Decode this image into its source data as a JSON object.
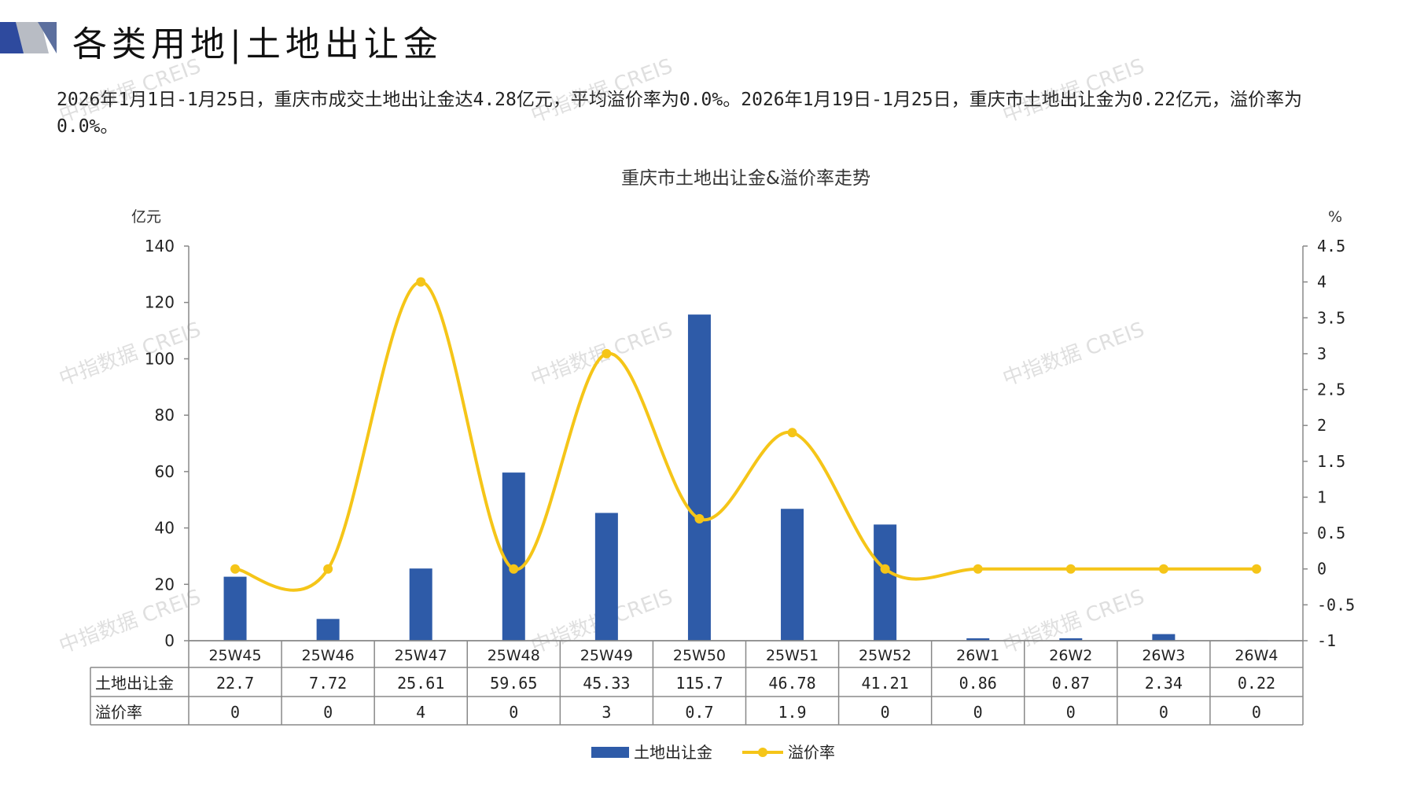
{
  "header": {
    "title": "各类用地|土地出让金",
    "summary": "2026年1月1日-1月25日，重庆市成交土地出让金达4.28亿元，平均溢价率为0.0%。2026年1月19日-1月25日，重庆市土地出让金为0.22亿元，溢价率为0.0%。"
  },
  "watermark": {
    "text": "中指数据 CREIS"
  },
  "colors": {
    "bar": "#2E5BA8",
    "line": "#F5C518",
    "axis": "#888888",
    "logo_dark": "#2E4A9E",
    "logo_light": "#B8BCC4"
  },
  "chart_data": {
    "type": "bar+line",
    "title": "重庆市土地出让金&溢价率走势",
    "ylabel_left": "亿元",
    "ylabel_right": "%",
    "ylim_left": [
      0,
      140
    ],
    "yticks_left": [
      0,
      20,
      40,
      60,
      80,
      100,
      120,
      140
    ],
    "ylim_right": [
      -1,
      4.5
    ],
    "yticks_right": [
      -1,
      -0.5,
      0,
      0.5,
      1,
      1.5,
      2,
      2.5,
      3,
      3.5,
      4,
      4.5
    ],
    "categories": [
      "25W45",
      "25W46",
      "25W47",
      "25W48",
      "25W49",
      "25W50",
      "25W51",
      "25W52",
      "26W1",
      "26W2",
      "26W3",
      "26W4"
    ],
    "series": [
      {
        "name": "土地出让金",
        "type": "bar",
        "axis": "left",
        "values": [
          22.7,
          7.72,
          25.61,
          59.65,
          45.33,
          115.7,
          46.78,
          41.21,
          0.86,
          0.87,
          2.34,
          0.22
        ],
        "labels": [
          "22.7",
          "7.72",
          "25.61",
          "59.65",
          "45.33",
          "115.7",
          "46.78",
          "41.21",
          "0.86",
          "0.87",
          "2.34",
          "0.22"
        ]
      },
      {
        "name": "溢价率",
        "type": "line",
        "axis": "right",
        "values": [
          0,
          0,
          4,
          0,
          3,
          0.7,
          1.9,
          0,
          0,
          0,
          0,
          0
        ],
        "labels": [
          "0",
          "0",
          "4",
          "0",
          "3",
          "0.7",
          "1.9",
          "0",
          "0",
          "0",
          "0",
          "0"
        ]
      }
    ],
    "legend": "bottom-center",
    "data_table": true,
    "grid": false
  }
}
